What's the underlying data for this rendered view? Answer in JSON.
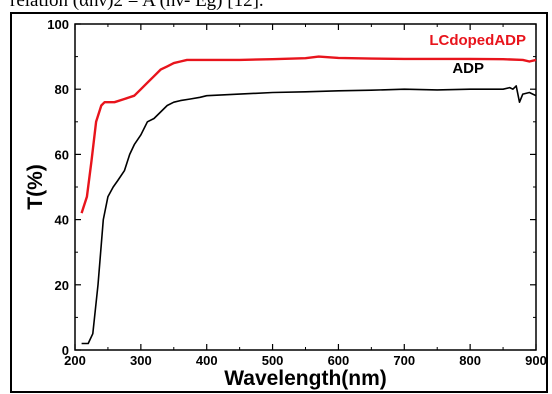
{
  "caption_fragment": "relation (αhν)2 = A (hν- Eg) [12].",
  "chart_data": {
    "type": "line",
    "xlabel": "Wavelength(nm)",
    "ylabel": "T(%)",
    "xlim": [
      200,
      900
    ],
    "ylim": [
      0,
      100
    ],
    "xticks": [
      200,
      300,
      400,
      500,
      600,
      700,
      800,
      900
    ],
    "yticks": [
      0,
      20,
      40,
      60,
      80,
      100
    ],
    "legend_placement": "top-right inline labels",
    "series": [
      {
        "name": "LCdopedADP",
        "color": "#e8141c",
        "x": [
          210,
          218,
          225,
          232,
          240,
          245,
          250,
          260,
          275,
          290,
          300,
          310,
          320,
          330,
          340,
          350,
          360,
          370,
          380,
          390,
          400,
          450,
          500,
          550,
          570,
          600,
          650,
          700,
          750,
          800,
          850,
          880,
          890,
          900
        ],
        "y": [
          42,
          47,
          58,
          70,
          75,
          76,
          76,
          76,
          77,
          78,
          80,
          82,
          84,
          86,
          87,
          88,
          88.5,
          89,
          89,
          89,
          89,
          89,
          89.2,
          89.5,
          90,
          89.6,
          89.4,
          89.3,
          89.3,
          89.3,
          89.2,
          89,
          88.5,
          89
        ]
      },
      {
        "name": "ADP",
        "color": "#000000",
        "x": [
          210,
          220,
          227,
          235,
          243,
          250,
          258,
          265,
          275,
          283,
          290,
          300,
          310,
          320,
          330,
          340,
          350,
          360,
          375,
          390,
          400,
          450,
          500,
          550,
          600,
          650,
          700,
          750,
          800,
          850,
          860,
          865,
          870,
          875,
          880,
          890,
          900
        ],
        "y": [
          2,
          2,
          5,
          20,
          40,
          47,
          50,
          52,
          55,
          60,
          63,
          66,
          70,
          71,
          73,
          75,
          76,
          76.5,
          77,
          77.5,
          78,
          78.5,
          79,
          79.2,
          79.5,
          79.7,
          80,
          79.8,
          80,
          80,
          80.5,
          80,
          81,
          76,
          78.5,
          79,
          78
        ]
      }
    ]
  }
}
